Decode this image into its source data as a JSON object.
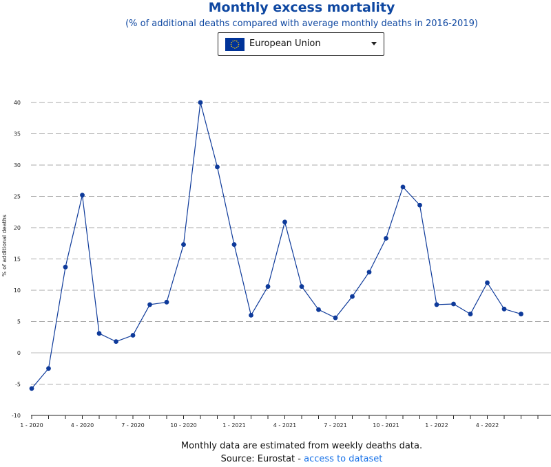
{
  "header": {
    "title": "Monthly excess mortality",
    "subtitle": "(% of additional deaths compared with average monthly deaths in 2016-2019)"
  },
  "selector": {
    "value": "European Union",
    "flag_color": "#003399",
    "star_color": "#ffcc00"
  },
  "colors": {
    "line": "#0e3a9a",
    "point": "#0e3a9a",
    "title": "#0e47a1",
    "grid": "#a8a8a8"
  },
  "chart_data": {
    "type": "line",
    "title": "Monthly excess mortality",
    "subtitle": "(% of additional deaths compared with average monthly deaths in 2016-2019)",
    "xlabel": "",
    "ylabel": "% of additional deaths",
    "ylim": [
      -10,
      40
    ],
    "yticks": [
      -10,
      -5,
      0,
      5,
      10,
      15,
      20,
      25,
      30,
      35,
      40
    ],
    "grid": true,
    "legend": "none",
    "x": [
      "1 - 2020",
      "2 - 2020",
      "3 - 2020",
      "4 - 2020",
      "5 - 2020",
      "6 - 2020",
      "7 - 2020",
      "8 - 2020",
      "9 - 2020",
      "10 - 2020",
      "11 - 2020",
      "12 - 2020",
      "1 - 2021",
      "2 - 2021",
      "3 - 2021",
      "4 - 2021",
      "5 - 2021",
      "6 - 2021",
      "7 - 2021",
      "8 - 2021",
      "9 - 2021",
      "10 - 2021",
      "11 - 2021",
      "12 - 2021",
      "1 - 2022",
      "2 - 2022",
      "3 - 2022",
      "4 - 2022",
      "5 - 2022",
      "6 - 2022"
    ],
    "xtick_labels": [
      "1 - 2020",
      "",
      "",
      "4 - 2020",
      "",
      "",
      "7 - 2020",
      "",
      "",
      "10 - 2020",
      "",
      "",
      "1 - 2021",
      "",
      "",
      "4 - 2021",
      "",
      "",
      "7 - 2021",
      "",
      "",
      "10 - 2021",
      "",
      "",
      "1 - 2022",
      "",
      "",
      "4 - 2022",
      "",
      ""
    ],
    "series": [
      {
        "name": "European Union",
        "values": [
          -5.7,
          -2.5,
          13.7,
          25.2,
          3.1,
          1.8,
          2.8,
          7.7,
          8.1,
          17.3,
          40.0,
          29.7,
          17.3,
          6.0,
          10.6,
          20.9,
          10.6,
          6.9,
          5.6,
          9.0,
          12.9,
          18.3,
          26.5,
          23.6,
          7.7,
          7.8,
          6.2,
          11.2,
          7.0,
          6.2
        ]
      }
    ]
  },
  "footer": {
    "note": "Monthly data are estimated from weekly deaths data.",
    "source_prefix": "Source: Eurostat - ",
    "source_link": "access to dataset"
  }
}
